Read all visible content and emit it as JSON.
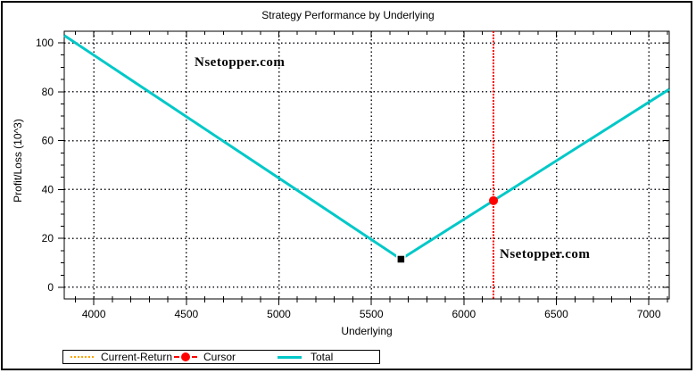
{
  "title": "Strategy Performance by Underlying",
  "watermark": "Nsetopper.com",
  "axes": {
    "x_label": "Underlying",
    "y_label": "Profit/Loss (10^3)"
  },
  "legend": {
    "items": [
      {
        "label": "Current-Return",
        "color": "#FFA500",
        "style": "dotted"
      },
      {
        "label": "Cursor",
        "color": "#FF0000",
        "style": "dash-with-dot"
      },
      {
        "label": "Total",
        "color": "#00C8C8",
        "style": "solid"
      }
    ]
  },
  "chart_data": {
    "type": "line",
    "title": "Strategy Performance by Underlying",
    "xlabel": "Underlying",
    "ylabel": "Profit/Loss (10^3)",
    "xlim": [
      3840,
      7110
    ],
    "ylim": [
      -4.75,
      104.75
    ],
    "x_major_ticks": [
      4000,
      4500,
      5000,
      5500,
      6000,
      6500,
      7000
    ],
    "x_minor_step": 100,
    "y_major_ticks": [
      0,
      20,
      40,
      60,
      80,
      100
    ],
    "y_minor_step": 5,
    "grid": "dotted",
    "grid_color": "#14141c",
    "frame_color": "#000000",
    "legend_position": "bottom-left",
    "series": [
      {
        "name": "Total",
        "color": "#00C8C8",
        "points": [
          [
            3840,
            103
          ],
          [
            5660,
            11.5
          ],
          [
            7110,
            81
          ]
        ]
      },
      {
        "name": "Current-Return",
        "color": "#FFA500",
        "points": []
      }
    ],
    "cursor": {
      "x": 6160,
      "color": "#FF0000",
      "point_on": "Total"
    },
    "min_marker": {
      "x": 5660,
      "y": 11.5,
      "shape": "square",
      "color": "#000000"
    }
  }
}
